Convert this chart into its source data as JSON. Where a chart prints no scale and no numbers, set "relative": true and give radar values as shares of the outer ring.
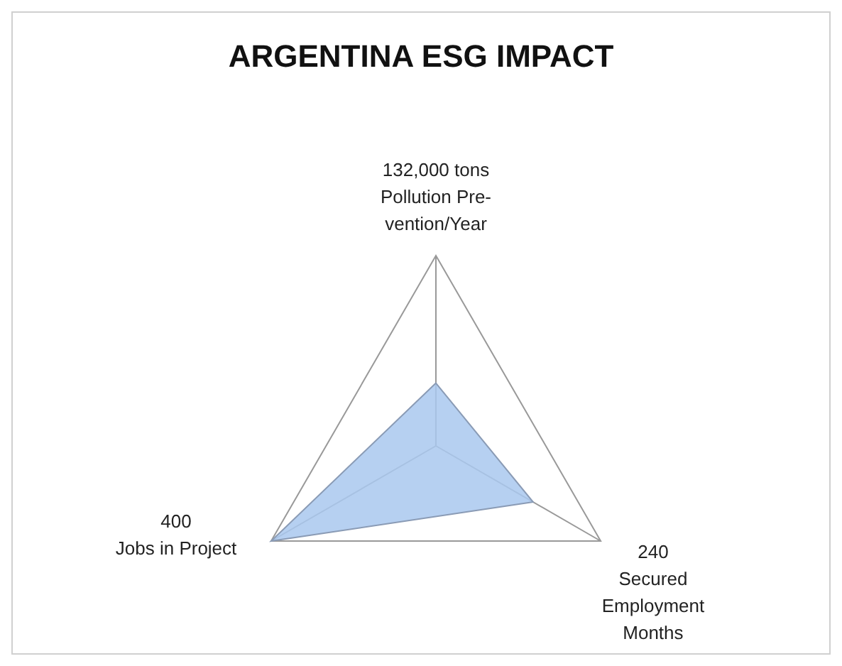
{
  "chart_data": {
    "type": "radar",
    "title": "ARGENTINA ESG IMPACT",
    "relative": true,
    "grid": true,
    "legend": false,
    "categories": [
      "132,000 tons\nPollution Pre-\nvention/Year",
      "240\nSecured\nEmployment\nMonths",
      "400\nJobs in Project"
    ],
    "series": [
      {
        "color": "#a9c8ee",
        "values": [
          0.33,
          0.59,
          1
        ]
      }
    ]
  }
}
